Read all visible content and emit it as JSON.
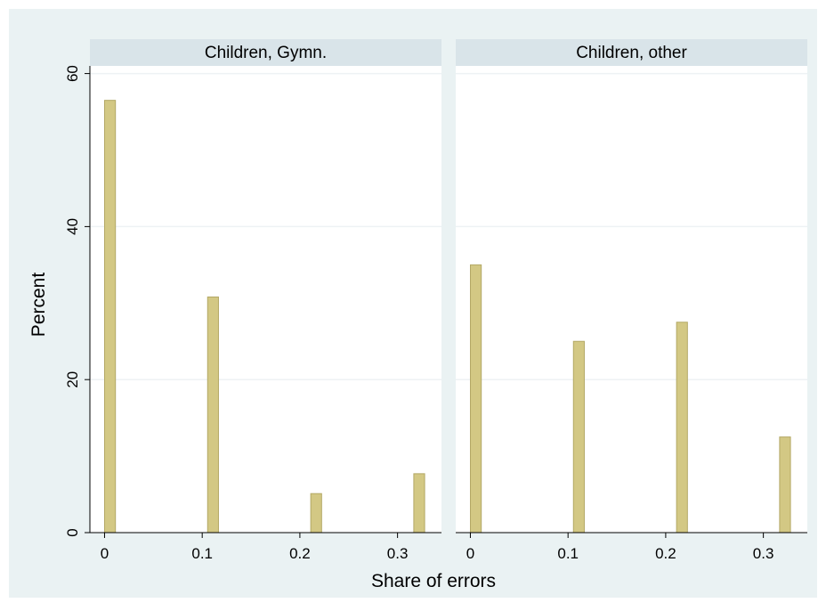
{
  "chart_data": {
    "type": "bar",
    "layout": "two side-by-side panels with shared y axis",
    "ylabel": "Percent",
    "xlabel": "Share of errors",
    "ylim": [
      0,
      61
    ],
    "yticks": [
      0,
      20,
      40,
      60
    ],
    "xlim": [
      -0.015,
      0.345
    ],
    "xticks": [
      0,
      0.1,
      0.2,
      0.3
    ],
    "xtick_labels": [
      "0",
      "0.1",
      "0.2",
      "0.3"
    ],
    "grid": true,
    "legend": "none",
    "colors": {
      "bar_fill": "#d3c884",
      "bar_stroke": "#b3a865",
      "outer_background": "#eaf2f3",
      "panel_background": "#ffffff",
      "strip_background": "#d9e4e9",
      "grid": "#eef2f4"
    },
    "panels": [
      {
        "title": "Children, Gymn.",
        "bars": [
          {
            "x": 0.0056,
            "value": 56.5
          },
          {
            "x": 0.1111,
            "value": 30.8
          },
          {
            "x": 0.2167,
            "value": 5.1
          },
          {
            "x": 0.3222,
            "value": 7.7
          }
        ]
      },
      {
        "title": "Children, other",
        "bars": [
          {
            "x": 0.0056,
            "value": 35.0
          },
          {
            "x": 0.1111,
            "value": 25.0
          },
          {
            "x": 0.2167,
            "value": 27.5
          },
          {
            "x": 0.3222,
            "value": 12.5
          }
        ]
      }
    ]
  }
}
